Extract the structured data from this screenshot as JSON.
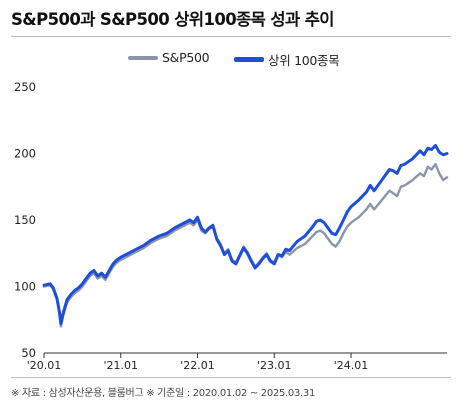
{
  "header": {
    "title": "S&P500과 S&P500 상위100종목 성과 추이"
  },
  "footer": {
    "note": "※ 자료 : 삼성자산운용, 블룸버그  ※ 기준일 : 2020.01.02 ~ 2025.03.31"
  },
  "chart_data": {
    "type": "line",
    "title": "S&P500과 S&P500 상위100종목 성과 추이",
    "xlabel": "",
    "ylabel": "",
    "xlim": [
      2020.0,
      2025.25
    ],
    "ylim": [
      50,
      250
    ],
    "yticks": [
      50,
      100,
      150,
      200,
      250
    ],
    "xticks": [
      {
        "label": "'20.01",
        "value": 2020.0
      },
      {
        "label": "'21.01",
        "value": 2021.0
      },
      {
        "label": "'22.01",
        "value": 2022.0
      },
      {
        "label": "'23.01",
        "value": 2023.0
      },
      {
        "label": "'24.01",
        "value": 2024.0
      }
    ],
    "grid": false,
    "legend_position": "top",
    "series": [
      {
        "name": "S&P500",
        "color": "#8a95a8",
        "x": [
          2020.0,
          2020.08,
          2020.12,
          2020.17,
          2020.2,
          2020.22,
          2020.25,
          2020.3,
          2020.35,
          2020.4,
          2020.45,
          2020.5,
          2020.55,
          2020.6,
          2020.65,
          2020.7,
          2020.75,
          2020.8,
          2020.85,
          2020.9,
          2020.95,
          2021.0,
          2021.1,
          2021.2,
          2021.3,
          2021.4,
          2021.5,
          2021.6,
          2021.7,
          2021.8,
          2021.9,
          2021.95,
          2022.0,
          2022.05,
          2022.1,
          2022.15,
          2022.2,
          2022.25,
          2022.3,
          2022.35,
          2022.4,
          2022.45,
          2022.5,
          2022.55,
          2022.6,
          2022.65,
          2022.7,
          2022.75,
          2022.8,
          2022.85,
          2022.9,
          2022.95,
          2023.0,
          2023.05,
          2023.1,
          2023.15,
          2023.2,
          2023.3,
          2023.4,
          2023.5,
          2023.55,
          2023.6,
          2023.65,
          2023.7,
          2023.75,
          2023.8,
          2023.85,
          2023.9,
          2023.95,
          2024.0,
          2024.1,
          2024.2,
          2024.25,
          2024.3,
          2024.4,
          2024.5,
          2024.55,
          2024.6,
          2024.65,
          2024.7,
          2024.8,
          2024.9,
          2024.95,
          2025.0,
          2025.05,
          2025.1,
          2025.15,
          2025.2,
          2025.25
        ],
        "values": [
          100,
          101,
          98,
          90,
          80,
          70,
          78,
          88,
          92,
          95,
          97,
          100,
          104,
          108,
          110,
          106,
          108,
          105,
          110,
          115,
          118,
          120,
          123,
          126,
          129,
          133,
          136,
          138,
          142,
          145,
          148,
          146,
          150,
          142,
          140,
          143,
          145,
          135,
          130,
          125,
          128,
          120,
          118,
          124,
          130,
          126,
          120,
          115,
          118,
          122,
          125,
          120,
          118,
          124,
          122,
          126,
          124,
          129,
          132,
          138,
          141,
          142,
          140,
          136,
          132,
          130,
          134,
          140,
          145,
          148,
          152,
          158,
          162,
          158,
          165,
          172,
          170,
          168,
          175,
          176,
          180,
          185,
          183,
          190,
          188,
          192,
          185,
          180,
          182
        ]
      },
      {
        "name": "상위 100종목",
        "color": "#1f4fd8",
        "x": [
          2020.0,
          2020.08,
          2020.12,
          2020.17,
          2020.2,
          2020.22,
          2020.25,
          2020.3,
          2020.35,
          2020.4,
          2020.45,
          2020.5,
          2020.55,
          2020.6,
          2020.65,
          2020.7,
          2020.75,
          2020.8,
          2020.85,
          2020.9,
          2020.95,
          2021.0,
          2021.1,
          2021.2,
          2021.3,
          2021.4,
          2021.5,
          2021.6,
          2021.7,
          2021.8,
          2021.9,
          2021.95,
          2022.0,
          2022.05,
          2022.1,
          2022.15,
          2022.2,
          2022.25,
          2022.3,
          2022.35,
          2022.4,
          2022.45,
          2022.5,
          2022.55,
          2022.6,
          2022.65,
          2022.7,
          2022.75,
          2022.8,
          2022.85,
          2022.9,
          2022.95,
          2023.0,
          2023.05,
          2023.1,
          2023.15,
          2023.2,
          2023.3,
          2023.4,
          2023.5,
          2023.55,
          2023.6,
          2023.65,
          2023.7,
          2023.75,
          2023.8,
          2023.85,
          2023.9,
          2023.95,
          2024.0,
          2024.1,
          2024.2,
          2024.25,
          2024.3,
          2024.4,
          2024.5,
          2024.55,
          2024.6,
          2024.65,
          2024.7,
          2024.8,
          2024.9,
          2024.95,
          2025.0,
          2025.05,
          2025.1,
          2025.15,
          2025.2,
          2025.25
        ],
        "values": [
          101,
          102,
          99,
          91,
          81,
          72,
          80,
          90,
          94,
          97,
          99,
          102,
          106,
          110,
          112,
          108,
          110,
          107,
          112,
          117,
          120,
          122,
          125,
          128,
          131,
          135,
          138,
          140,
          144,
          147,
          150,
          148,
          152,
          144,
          141,
          144,
          146,
          136,
          131,
          124,
          127,
          119,
          117,
          123,
          129,
          125,
          119,
          114,
          117,
          121,
          124,
          119,
          117,
          124,
          123,
          128,
          127,
          134,
          138,
          145,
          149,
          150,
          148,
          144,
          140,
          139,
          144,
          150,
          156,
          160,
          165,
          171,
          176,
          172,
          180,
          188,
          187,
          185,
          191,
          192,
          196,
          202,
          199,
          204,
          203,
          206,
          201,
          199,
          200
        ]
      }
    ]
  }
}
